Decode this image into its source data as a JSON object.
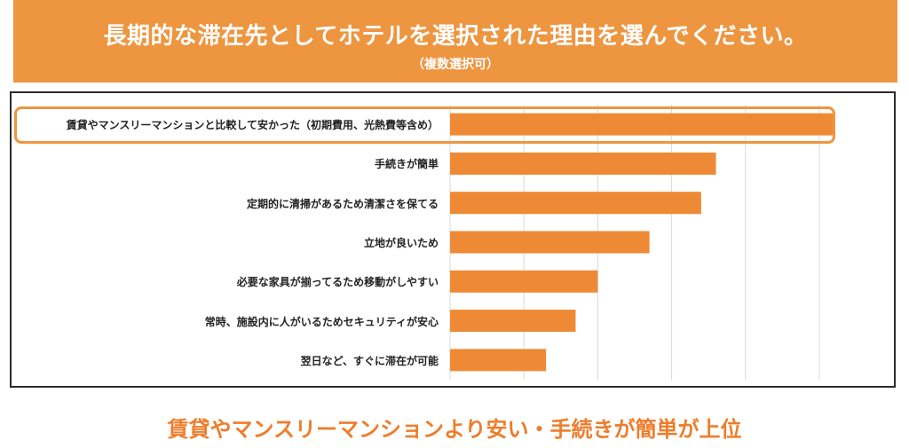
{
  "header": {
    "title": "長期的な滞在先としてホテルを選択された理由を選んでください。",
    "subtitle": "（複数選択可）"
  },
  "chart_data": {
    "type": "bar",
    "orientation": "horizontal",
    "categories": [
      "賃貸やマンスリーマンションと比較して安かった（初期費用、光熱費等含め）",
      "手続きが簡単",
      "定期的に清掃があるため清潔さを保てる",
      "立地が良いため",
      "必要な家具が揃ってるため移動がしやすい",
      "常時、施設内に人がいるためセキュリティが安心",
      "翌日など、すぐに滞在が可能"
    ],
    "values": [
      52,
      36,
      34,
      27,
      20,
      17,
      13
    ],
    "xlim": [
      0,
      50
    ],
    "gridlines": [
      0,
      10,
      20,
      30,
      40,
      50
    ],
    "bar_color": "#ee8a35",
    "grid": true,
    "highlighted_index": 0
  },
  "conclusion": "賃貸やマンスリーマンションより安い・手続きが簡単が上位",
  "colors": {
    "banner": "#ee9540",
    "accent_text": "#ee7d2b"
  }
}
